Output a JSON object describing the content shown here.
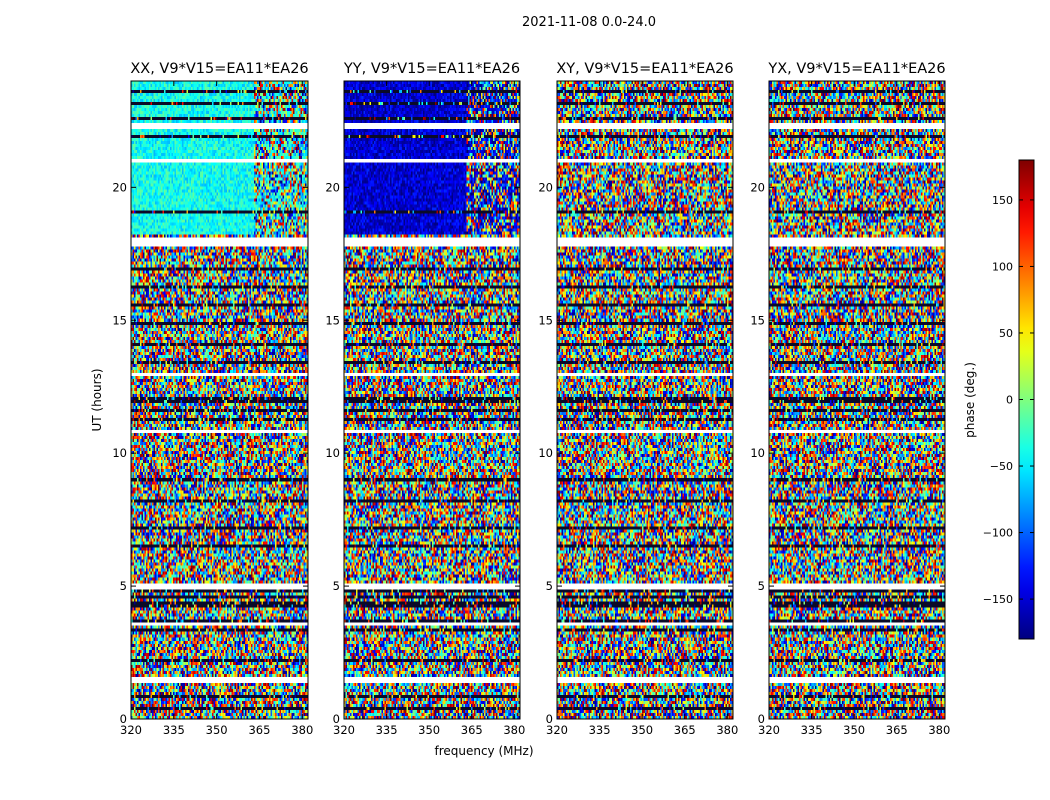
{
  "chart_data": {
    "type": "heatmap",
    "suptitle": "2021-11-08 0.0-24.0",
    "xlabel": "frequency (MHz)",
    "ylabel": "UT (hours)",
    "colorbar_label": "phase (deg.)",
    "xlim": [
      320,
      382
    ],
    "ylim": [
      0,
      24
    ],
    "xticks": [
      320,
      335,
      350,
      365,
      380
    ],
    "yticks": [
      0,
      5,
      10,
      15,
      20
    ],
    "color_range": [
      -180,
      180
    ],
    "colorbar_ticks": [
      -150,
      -100,
      -50,
      0,
      50,
      100,
      150
    ],
    "colormap": "jet",
    "panels": [
      {
        "title": "XX, V9*V15=EA11*EA26",
        "coherent_phase_deg": -40,
        "coherent_band_hours": [
          18.2,
          24
        ]
      },
      {
        "title": "YY, V9*V15=EA11*EA26",
        "coherent_phase_deg": -150,
        "coherent_band_hours": [
          18.2,
          24
        ]
      },
      {
        "title": "XY, V9*V15=EA11*EA26"
      },
      {
        "title": "YX, V9*V15=EA11*EA26"
      }
    ]
  }
}
